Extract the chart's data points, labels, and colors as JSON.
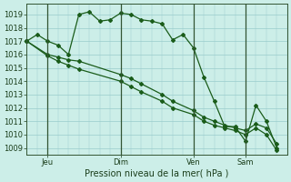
{
  "background_color": "#cceee8",
  "grid_color": "#99cccc",
  "line_color": "#1a5c1a",
  "xlabel": "Pression niveau de la mer( hPa )",
  "ylim": [
    1008.5,
    1019.8
  ],
  "yticks": [
    1009,
    1010,
    1011,
    1012,
    1013,
    1014,
    1015,
    1016,
    1017,
    1018,
    1019
  ],
  "xtick_labels": [
    "Jeu",
    "Dim",
    "Ven",
    "Sam"
  ],
  "xtick_positions": [
    2,
    9,
    16,
    21
  ],
  "vline_positions": [
    2,
    9,
    16,
    21
  ],
  "xlim": [
    0,
    25
  ],
  "line1_x": [
    0,
    1,
    2,
    3,
    4,
    5,
    6,
    7,
    8,
    9,
    10,
    11,
    12,
    13,
    14,
    15,
    16,
    17,
    18,
    19,
    20,
    21,
    22,
    23,
    24
  ],
  "line1_y": [
    1017.0,
    1017.5,
    1017.0,
    1016.7,
    1016.0,
    1019.0,
    1019.2,
    1018.5,
    1018.6,
    1019.1,
    1019.0,
    1018.6,
    1018.5,
    1018.3,
    1017.1,
    1017.5,
    1016.5,
    1014.3,
    1012.5,
    1010.6,
    1010.6,
    1009.5,
    1012.2,
    1011.0,
    1009.0
  ],
  "line2_x": [
    0,
    2,
    3,
    4,
    5,
    9,
    10,
    11,
    13,
    14,
    16,
    17,
    18,
    19,
    20,
    21,
    22,
    23,
    24
  ],
  "line2_y": [
    1017.0,
    1016.0,
    1015.8,
    1015.6,
    1015.5,
    1014.5,
    1014.2,
    1013.8,
    1013.0,
    1012.5,
    1011.8,
    1011.3,
    1011.0,
    1010.7,
    1010.5,
    1010.3,
    1010.8,
    1010.5,
    1009.3
  ],
  "line3_x": [
    0,
    2,
    3,
    4,
    5,
    9,
    10,
    11,
    13,
    14,
    16,
    17,
    18,
    19,
    20,
    21,
    22,
    23,
    24
  ],
  "line3_y": [
    1017.0,
    1015.9,
    1015.5,
    1015.2,
    1014.9,
    1014.0,
    1013.6,
    1013.2,
    1012.5,
    1012.0,
    1011.5,
    1011.0,
    1010.7,
    1010.5,
    1010.3,
    1010.0,
    1010.5,
    1010.0,
    1008.8
  ]
}
